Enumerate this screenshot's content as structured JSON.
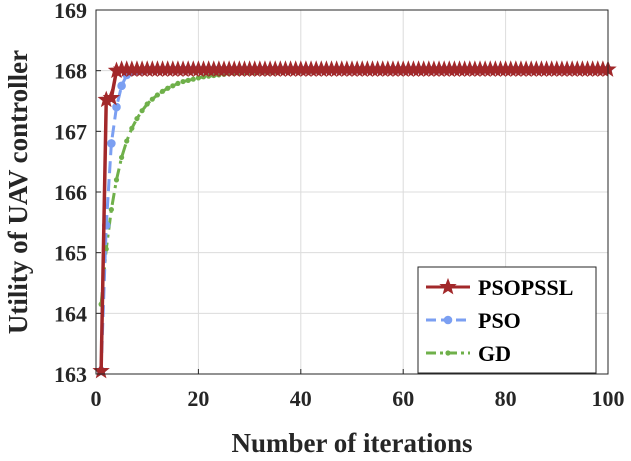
{
  "chart_data": {
    "type": "line",
    "xlabel": "Number of iterations",
    "ylabel": "Utility of UAV controller",
    "xlim": [
      0,
      100
    ],
    "ylim": [
      163,
      169
    ],
    "xticks": [
      0,
      20,
      40,
      60,
      80,
      100
    ],
    "yticks": [
      163,
      164,
      165,
      166,
      167,
      168,
      169
    ],
    "xtick_labels": [
      "0",
      "20",
      "40",
      "60",
      "80",
      "100"
    ],
    "ytick_labels": [
      "163",
      "164",
      "165",
      "166",
      "167",
      "168",
      "169"
    ],
    "grid": true,
    "legend_position": "bottom-right",
    "series": [
      {
        "name": "PSOPSSL",
        "color": "#a2282a",
        "marker": "star",
        "line_style": "solid",
        "x": [
          1,
          2,
          3,
          4,
          5,
          6,
          7,
          8,
          9,
          10,
          11,
          12,
          13,
          14,
          15,
          16,
          17,
          18,
          19,
          20,
          21,
          22,
          23,
          24,
          25,
          26,
          27,
          28,
          29,
          30,
          31,
          32,
          33,
          34,
          35,
          36,
          37,
          38,
          39,
          40,
          41,
          42,
          43,
          44,
          45,
          46,
          47,
          48,
          49,
          50,
          51,
          52,
          53,
          54,
          55,
          56,
          57,
          58,
          59,
          60,
          61,
          62,
          63,
          64,
          65,
          66,
          67,
          68,
          69,
          70,
          71,
          72,
          73,
          74,
          75,
          76,
          77,
          78,
          79,
          80,
          81,
          82,
          83,
          84,
          85,
          86,
          87,
          88,
          89,
          90,
          91,
          92,
          93,
          94,
          95,
          96,
          97,
          98,
          99,
          100
        ],
        "y": [
          163.05,
          167.52,
          167.55,
          168.0,
          168.02,
          168.02,
          168.02,
          168.02,
          168.02,
          168.02,
          168.02,
          168.02,
          168.02,
          168.02,
          168.02,
          168.02,
          168.02,
          168.02,
          168.02,
          168.02,
          168.02,
          168.02,
          168.02,
          168.02,
          168.02,
          168.02,
          168.02,
          168.02,
          168.02,
          168.02,
          168.02,
          168.02,
          168.02,
          168.02,
          168.02,
          168.02,
          168.02,
          168.02,
          168.02,
          168.02,
          168.02,
          168.02,
          168.02,
          168.02,
          168.02,
          168.02,
          168.02,
          168.02,
          168.02,
          168.02,
          168.02,
          168.02,
          168.02,
          168.02,
          168.02,
          168.02,
          168.02,
          168.02,
          168.02,
          168.02,
          168.02,
          168.02,
          168.02,
          168.02,
          168.02,
          168.02,
          168.02,
          168.02,
          168.02,
          168.02,
          168.02,
          168.02,
          168.02,
          168.02,
          168.02,
          168.02,
          168.02,
          168.02,
          168.02,
          168.02,
          168.02,
          168.02,
          168.02,
          168.02,
          168.02,
          168.02,
          168.02,
          168.02,
          168.02,
          168.02,
          168.02,
          168.02,
          168.02,
          168.02,
          168.02,
          168.02,
          168.02,
          168.02,
          168.02,
          168.02
        ]
      },
      {
        "name": "PSO",
        "color": "#7b9ff2",
        "marker": "circle",
        "line_style": "dashed",
        "x": [
          1,
          2,
          3,
          4,
          5,
          6,
          7,
          8,
          9,
          10,
          11,
          12,
          13,
          14,
          15,
          16,
          17,
          18,
          19,
          20,
          21,
          22,
          23,
          24,
          25,
          26,
          27,
          28,
          29,
          30,
          31,
          32,
          33,
          34,
          35,
          36,
          37,
          38,
          39,
          40,
          41,
          42,
          43,
          44,
          45,
          46,
          47,
          48,
          49,
          50,
          51,
          52,
          53,
          54,
          55,
          56,
          57,
          58,
          59,
          60,
          61,
          62,
          63,
          64,
          65,
          66,
          67,
          68,
          69,
          70,
          71,
          72,
          73,
          74,
          75,
          76,
          77,
          78,
          79,
          80,
          81,
          82,
          83,
          84,
          85,
          86,
          87,
          88,
          89,
          90,
          91,
          92,
          93,
          94,
          95,
          96,
          97,
          98,
          99,
          100
        ],
        "y": [
          163.05,
          165.45,
          166.8,
          167.4,
          167.75,
          167.93,
          167.98,
          168.0,
          168.01,
          168.02,
          168.02,
          168.02,
          168.02,
          168.02,
          168.02,
          168.02,
          168.02,
          168.02,
          168.02,
          168.02,
          168.02,
          168.02,
          168.02,
          168.02,
          168.02,
          168.02,
          168.02,
          168.02,
          168.02,
          168.02,
          168.02,
          168.02,
          168.02,
          168.02,
          168.02,
          168.02,
          168.02,
          168.02,
          168.02,
          168.02,
          168.02,
          168.02,
          168.02,
          168.02,
          168.02,
          168.02,
          168.02,
          168.02,
          168.02,
          168.02,
          168.02,
          168.02,
          168.02,
          168.02,
          168.02,
          168.02,
          168.02,
          168.02,
          168.02,
          168.02,
          168.02,
          168.02,
          168.02,
          168.02,
          168.02,
          168.02,
          168.02,
          168.02,
          168.02,
          168.02,
          168.02,
          168.02,
          168.02,
          168.02,
          168.02,
          168.02,
          168.02,
          168.02,
          168.02,
          168.02,
          168.02,
          168.02,
          168.02,
          168.02,
          168.02,
          168.02,
          168.02,
          168.02,
          168.02,
          168.02,
          168.02,
          168.02,
          168.02,
          168.02,
          168.02,
          168.02,
          168.02,
          168.02,
          168.02,
          168.02
        ]
      },
      {
        "name": "GD",
        "color": "#6fb04a",
        "marker": "dot",
        "line_style": "dash-dot",
        "x": [
          1,
          2,
          3,
          4,
          5,
          6,
          7,
          8,
          9,
          10,
          11,
          12,
          13,
          14,
          15,
          16,
          17,
          18,
          19,
          20,
          21,
          22,
          23,
          24,
          25,
          26,
          27,
          28,
          29,
          30,
          31,
          32,
          33,
          34,
          35,
          36,
          37,
          38,
          39,
          40,
          41,
          42,
          43,
          44,
          45,
          46,
          47,
          48,
          49,
          50,
          51,
          52,
          53,
          54,
          55,
          56,
          57,
          58,
          59,
          60,
          61,
          62,
          63,
          64,
          65,
          66,
          67,
          68,
          69,
          70,
          71,
          72,
          73,
          74,
          75,
          76,
          77,
          78,
          79,
          80,
          81,
          82,
          83,
          84,
          85,
          86,
          87,
          88,
          89,
          90,
          91,
          92,
          93,
          94,
          95,
          96,
          97,
          98,
          99,
          100
        ],
        "y": [
          164.15,
          165.06,
          165.71,
          166.2,
          166.57,
          166.84,
          167.05,
          167.21,
          167.34,
          167.45,
          167.53,
          167.6,
          167.66,
          167.71,
          167.75,
          167.79,
          167.82,
          167.84,
          167.86,
          167.88,
          167.9,
          167.91,
          167.92,
          167.93,
          167.94,
          167.95,
          167.96,
          167.96,
          167.97,
          167.97,
          167.97,
          167.98,
          167.98,
          167.98,
          167.98,
          167.99,
          167.99,
          167.99,
          167.99,
          167.99,
          167.99,
          167.99,
          167.99,
          168.0,
          168.0,
          168.0,
          168.0,
          168.0,
          168.0,
          168.0,
          168.0,
          168.0,
          168.0,
          168.0,
          168.0,
          168.0,
          168.0,
          168.0,
          168.0,
          168.0,
          168.0,
          168.0,
          168.0,
          168.0,
          168.0,
          168.0,
          168.0,
          168.0,
          168.0,
          168.0,
          168.0,
          168.0,
          168.0,
          168.0,
          168.0,
          168.0,
          168.0,
          168.0,
          168.0,
          168.0,
          168.0,
          168.0,
          168.0,
          168.0,
          168.0,
          168.0,
          168.0,
          168.0,
          168.0,
          168.0,
          168.0,
          168.0,
          168.0,
          168.0,
          168.0,
          168.0,
          168.0,
          168.0,
          168.0,
          168.0
        ]
      }
    ]
  }
}
